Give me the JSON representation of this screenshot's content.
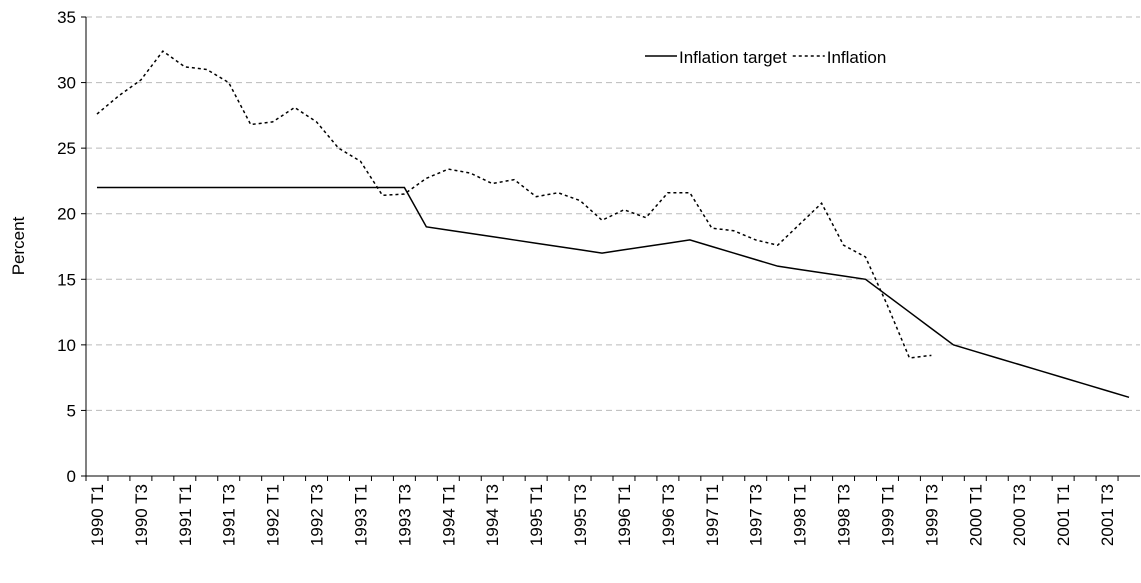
{
  "chart_data": {
    "type": "line",
    "categories": [
      "1990 T1",
      null,
      "1990 T3",
      null,
      "1991 T1",
      null,
      "1991 T3",
      null,
      "1992 T1",
      null,
      "1992 T3",
      null,
      "1993 T1",
      null,
      "1993 T3",
      null,
      "1994 T1",
      null,
      "1994 T3",
      null,
      "1995 T1",
      null,
      "1995 T3",
      null,
      "1996 T1",
      null,
      "1996 T3",
      null,
      "1997 T1",
      null,
      "1997 T3",
      null,
      "1998 T1",
      null,
      "1998 T3",
      null,
      "1999 T1",
      null,
      "1999 T3",
      null,
      "2000 T1",
      null,
      "2000 T3",
      null,
      "2001 T1",
      null,
      "2001 T3",
      null
    ],
    "y_label": "Percent",
    "ylim": [
      0,
      35
    ],
    "yticks": [
      0,
      5,
      10,
      15,
      20,
      25,
      30,
      35
    ],
    "grid": true,
    "legend": "top-right",
    "series": [
      {
        "name": "Inflation target",
        "color": "#000000",
        "dash": "solid",
        "values": [
          22,
          22,
          22,
          22,
          22,
          22,
          22,
          22,
          22,
          22,
          22,
          22,
          22,
          22,
          22,
          19,
          18.75,
          18.5,
          18.25,
          18,
          17.75,
          17.5,
          17.25,
          17,
          17.25,
          17.5,
          17.75,
          18,
          17.5,
          17,
          16.5,
          16,
          15.75,
          15.5,
          15.25,
          15,
          13.75,
          12.5,
          11.25,
          10,
          9.5,
          9,
          8.5,
          8,
          7.5,
          7,
          6.5,
          6
        ]
      },
      {
        "name": "Inflation",
        "color": "#000000",
        "dash": "dotted",
        "values": [
          27.6,
          29,
          30.2,
          32.4,
          31.2,
          31,
          30,
          26.8,
          27,
          28.1,
          27,
          25,
          24,
          21.4,
          21.5,
          22.7,
          23.4,
          23.1,
          22.3,
          22.6,
          21.3,
          21.6,
          21,
          19.5,
          20.3,
          19.7,
          21.6,
          21.6,
          18.9,
          18.7,
          18,
          17.6,
          19.2,
          20.8,
          17.6,
          16.7,
          13,
          9,
          9.2,
          null,
          null,
          null,
          null,
          null,
          null,
          null,
          null,
          null
        ]
      }
    ]
  }
}
